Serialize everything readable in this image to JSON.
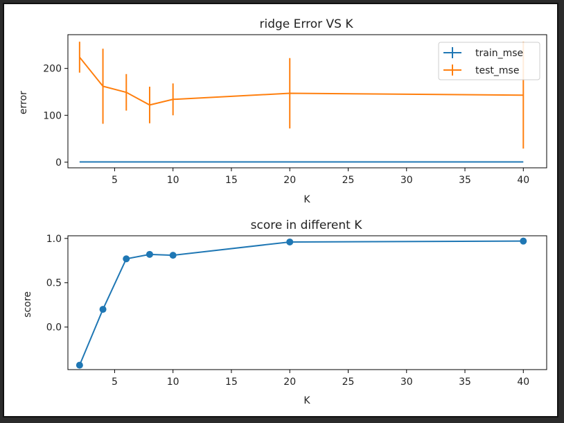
{
  "chart_data": [
    {
      "type": "line",
      "title": "ridge Error VS K",
      "xlabel": "K",
      "ylabel": "error",
      "xlim": [
        1,
        42
      ],
      "ylim": [
        -12,
        272
      ],
      "xticks": [
        5,
        10,
        15,
        20,
        25,
        30,
        35,
        40
      ],
      "yticks": [
        0,
        100,
        200
      ],
      "grid": false,
      "legend": "top-right",
      "x": [
        2,
        4,
        6,
        8,
        10,
        20,
        40
      ],
      "series": [
        {
          "name": "train_mse",
          "color": "#1f77b4",
          "values": [
            0.5,
            0.5,
            0.5,
            0.5,
            0.5,
            0.5,
            0.5
          ],
          "errors": [
            0,
            0,
            0,
            0,
            0,
            0,
            0
          ]
        },
        {
          "name": "test_mse",
          "color": "#ff7f0e",
          "values": [
            224,
            162,
            149,
            122,
            134,
            147,
            143
          ],
          "errors": [
            33,
            80,
            39,
            39,
            34,
            75,
            114
          ]
        }
      ]
    },
    {
      "type": "line",
      "title": "score in different K",
      "xlabel": "K",
      "ylabel": "score",
      "xlim": [
        1,
        42
      ],
      "ylim": [
        -0.48,
        1.03
      ],
      "xticks": [
        5,
        10,
        15,
        20,
        25,
        30,
        35,
        40
      ],
      "yticks": [
        0.0,
        0.5,
        1.0
      ],
      "ytick_labels": [
        "0.0",
        "0.5",
        "1.0"
      ],
      "grid": false,
      "x": [
        2,
        4,
        6,
        8,
        10,
        20,
        40
      ],
      "series": [
        {
          "name": "",
          "color": "#1f77b4",
          "marker": "circle",
          "values": [
            -0.43,
            0.2,
            0.77,
            0.82,
            0.81,
            0.96,
            0.97
          ]
        }
      ]
    }
  ]
}
